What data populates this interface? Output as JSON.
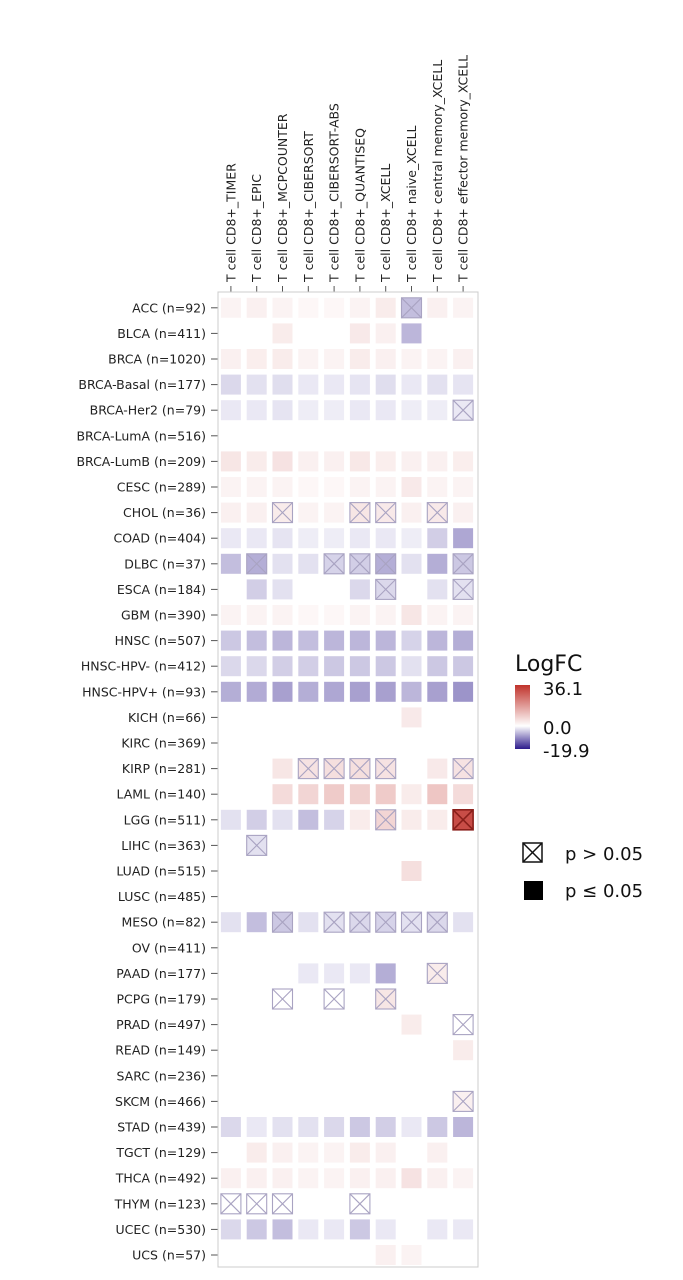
{
  "chart_data": {
    "type": "heatmap",
    "columns": [
      "T cell CD8+_TIMER",
      "T cell CD8+_EPIC",
      "T cell CD8+_MCPCOUNTER",
      "T cell CD8+_CIBERSORT",
      "T cell CD8+_CIBERSORT-ABS",
      "T cell CD8+_QUANTISEQ",
      "T cell CD8+_XCELL",
      "T cell CD8+ naive_XCELL",
      "T cell CD8+ central memory_XCELL",
      "T cell CD8+ effector memory_XCELL"
    ],
    "rows": [
      "ACC (n=92)",
      "BLCA (n=411)",
      "BRCA (n=1020)",
      "BRCA-Basal (n=177)",
      "BRCA-Her2 (n=79)",
      "BRCA-LumA (n=516)",
      "BRCA-LumB (n=209)",
      "CESC (n=289)",
      "CHOL (n=36)",
      "COAD (n=404)",
      "DLBC (n=37)",
      "ESCA (n=184)",
      "GBM (n=390)",
      "HNSC (n=507)",
      "HNSC-HPV- (n=412)",
      "HNSC-HPV+ (n=93)",
      "KICH (n=66)",
      "KIRC (n=369)",
      "KIRP (n=281)",
      "LAML (n=140)",
      "LGG (n=511)",
      "LIHC (n=363)",
      "LUAD (n=515)",
      "LUSC (n=485)",
      "MESO (n=82)",
      "OV (n=411)",
      "PAAD (n=177)",
      "PCPG (n=179)",
      "PRAD (n=497)",
      "READ (n=149)",
      "SARC (n=236)",
      "SKCM (n=466)",
      "STAD (n=439)",
      "TGCT (n=129)",
      "THCA (n=492)",
      "THYM (n=123)",
      "UCEC (n=530)",
      "UCS (n=57)"
    ],
    "values": [
      [
        0.2,
        0.3,
        0.2,
        0.1,
        0.1,
        0.2,
        0.5,
        -2.0,
        0.3,
        0.2
      ],
      [
        0,
        0,
        0.5,
        0,
        0,
        0.6,
        0.3,
        -2.5,
        0,
        0
      ],
      [
        0.3,
        0.4,
        0.5,
        0.2,
        0.2,
        0.5,
        0.3,
        0.2,
        0.2,
        0.3
      ],
      [
        -0.8,
        -0.5,
        -0.6,
        -0.3,
        -0.3,
        -0.4,
        -0.6,
        -0.3,
        -0.5,
        -0.4
      ],
      [
        -0.3,
        -0.3,
        -0.4,
        -0.2,
        -0.2,
        -0.3,
        -0.3,
        -0.2,
        -0.2,
        -0.3
      ],
      [
        0,
        0,
        0,
        0,
        0,
        0,
        0,
        0,
        0,
        0
      ],
      [
        0.8,
        0.5,
        1.0,
        0.3,
        0.3,
        0.7,
        0.4,
        0.3,
        0.3,
        0.4
      ],
      [
        0.2,
        0.2,
        0.2,
        0.1,
        0.1,
        0.2,
        0.2,
        0.6,
        0.2,
        0.2
      ],
      [
        0.3,
        0.3,
        0.5,
        0.2,
        0.2,
        0.8,
        0.6,
        0.3,
        0.6,
        0.3
      ],
      [
        -0.3,
        -0.3,
        -0.4,
        -0.2,
        -0.2,
        -0.3,
        -0.3,
        -0.2,
        -1.2,
        -3.5
      ],
      [
        -2.0,
        -3.0,
        -0.5,
        -0.5,
        -1.0,
        -1.2,
        -3.0,
        -0.5,
        -3.0,
        -1.5
      ],
      [
        0,
        -1.2,
        -0.5,
        0,
        0,
        -0.8,
        -0.8,
        0,
        -0.5,
        -0.5
      ],
      [
        0.2,
        0.2,
        0.2,
        0.1,
        0.1,
        0.2,
        0.2,
        0.8,
        0.2,
        0.2
      ],
      [
        -1.5,
        -2.0,
        -2.5,
        -2.0,
        -2.5,
        -2.5,
        -2.5,
        -1.0,
        -2.5,
        -3.0
      ],
      [
        -0.8,
        -0.8,
        -1.2,
        -1.2,
        -1.5,
        -1.5,
        -1.5,
        -0.5,
        -1.5,
        -1.5
      ],
      [
        -3.0,
        -3.2,
        -4.0,
        -3.0,
        -3.5,
        -4.0,
        -4.0,
        -2.5,
        -4.0,
        -5.0
      ],
      [
        0,
        0,
        0,
        0,
        0,
        0,
        0,
        0.6,
        0,
        0
      ],
      [
        0,
        0,
        0,
        0,
        0,
        0,
        0,
        0,
        0,
        0
      ],
      [
        0,
        0,
        0.8,
        1.0,
        1.2,
        1.2,
        1.0,
        0,
        0.6,
        1.0
      ],
      [
        0,
        0,
        1.5,
        2.0,
        3.0,
        2.5,
        3.0,
        0.5,
        3.5,
        1.5
      ],
      [
        -0.5,
        -1.2,
        -0.5,
        -2.0,
        -1.0,
        0.5,
        2.0,
        0.5,
        0.5,
        28.0
      ],
      [
        0,
        -0.5,
        0,
        0,
        0,
        0,
        0,
        0,
        0,
        0
      ],
      [
        0,
        0,
        0,
        0,
        0,
        0,
        0,
        1.2,
        0,
        0
      ],
      [
        0,
        0,
        0,
        0,
        0,
        0,
        0,
        0,
        0,
        0
      ],
      [
        -0.5,
        -2.0,
        -1.5,
        -0.5,
        -0.5,
        -0.8,
        -1.0,
        -0.5,
        -0.8,
        -0.5
      ],
      [
        0,
        0,
        0,
        0,
        0,
        0,
        0,
        0,
        0,
        0
      ],
      [
        0,
        0,
        0,
        -0.3,
        -0.3,
        -0.3,
        -3.0,
        0,
        0.5,
        0
      ],
      [
        0,
        0,
        0,
        0,
        0,
        0,
        0.8,
        0,
        0,
        0
      ],
      [
        0,
        0,
        0,
        0,
        0,
        0,
        0,
        0.5,
        0,
        0
      ],
      [
        0,
        0,
        0,
        0,
        0,
        0,
        0,
        0,
        0,
        0.5
      ],
      [
        0,
        0,
        0,
        0,
        0,
        0,
        0,
        0,
        0,
        0
      ],
      [
        0,
        0,
        0,
        0,
        0,
        0,
        0,
        0,
        0,
        0.3
      ],
      [
        -0.8,
        -0.3,
        -0.5,
        -0.5,
        -0.8,
        -1.5,
        -1.2,
        -0.3,
        -1.5,
        -2.5
      ],
      [
        0,
        0.5,
        0.3,
        0.2,
        0.2,
        0.5,
        0.3,
        0,
        0.3,
        0
      ],
      [
        0.3,
        0.3,
        0.3,
        0.2,
        0.2,
        0.3,
        0.3,
        1.0,
        0.3,
        0.2
      ],
      [
        0,
        0,
        0,
        0,
        0,
        0,
        0,
        0,
        0,
        0
      ],
      [
        -0.8,
        -1.5,
        -2.0,
        -0.3,
        -0.3,
        -1.5,
        -0.3,
        0,
        -0.3,
        -0.3
      ],
      [
        0,
        0,
        0,
        0,
        0,
        0,
        0.3,
        0.2,
        0,
        0
      ]
    ],
    "not_significant": [
      [
        0,
        7
      ],
      [
        4,
        9
      ],
      [
        8,
        2
      ],
      [
        8,
        5
      ],
      [
        8,
        6
      ],
      [
        8,
        8
      ],
      [
        10,
        1
      ],
      [
        10,
        4
      ],
      [
        10,
        5
      ],
      [
        10,
        6
      ],
      [
        10,
        9
      ],
      [
        11,
        6
      ],
      [
        11,
        9
      ],
      [
        18,
        3
      ],
      [
        18,
        4
      ],
      [
        18,
        5
      ],
      [
        18,
        6
      ],
      [
        18,
        9
      ],
      [
        20,
        6
      ],
      [
        20,
        9
      ],
      [
        21,
        1
      ],
      [
        24,
        2
      ],
      [
        24,
        4
      ],
      [
        24,
        5
      ],
      [
        24,
        6
      ],
      [
        24,
        7
      ],
      [
        24,
        8
      ],
      [
        26,
        8
      ],
      [
        27,
        2
      ],
      [
        27,
        4
      ],
      [
        27,
        6
      ],
      [
        28,
        9
      ],
      [
        31,
        9
      ],
      [
        35,
        0
      ],
      [
        35,
        1
      ],
      [
        35,
        2
      ],
      [
        35,
        5
      ]
    ],
    "color_range": [
      -19.9,
      36.1
    ],
    "colors": {
      "low": "#2c1a8c",
      "mid": "#ffffff",
      "high": "#c0322b"
    },
    "legend": {
      "title": "LogFC",
      "max_label": "36.1",
      "mid_label": "0.0",
      "min_label": "-19.9",
      "ns_label": "p > 0.05",
      "sig_label": "p ≤ 0.05"
    }
  }
}
